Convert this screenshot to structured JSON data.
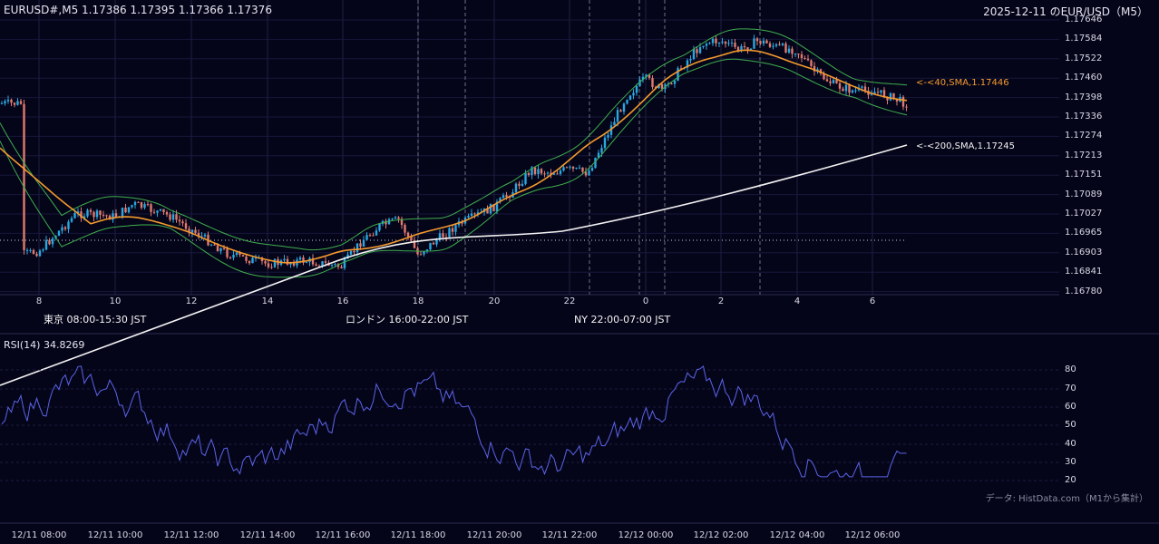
{
  "header": {
    "symbol_info": "EURUSD#,M5 1.17386 1.17395 1.17366 1.17376",
    "title": "2025-12-11 のEUR/USD（M5）"
  },
  "price_axis": {
    "ticks": [
      "1.17646",
      "1.17584",
      "1.17522",
      "1.17460",
      "1.17398",
      "1.17336",
      "1.17274",
      "1.17213",
      "1.17151",
      "1.17089",
      "1.17027",
      "1.16965",
      "1.16903",
      "1.16841",
      "1.16780"
    ]
  },
  "time_axis": {
    "hour_ticks": [
      "8",
      "10",
      "12",
      "14",
      "16",
      "18",
      "20",
      "22",
      "0",
      "2",
      "4",
      "6"
    ]
  },
  "sessions": [
    {
      "label": "東京 08:00-15:30 JST",
      "color": "#264a7a"
    },
    {
      "label": "ロンドン 16:00-22:00 JST",
      "color": "#7a5312"
    },
    {
      "label": "NY 22:00-07:00 JST",
      "color": "#24603c"
    }
  ],
  "indicators": {
    "sma40": {
      "label": "<-<40,SMA,1.17446",
      "color": "#f39a2c"
    },
    "sma200": {
      "label": "<-<200,SMA,1.17245",
      "color": "#f2f2f2"
    },
    "bollinger_color": "#3fae4d",
    "candle_up_color": "#29a8e0",
    "candle_down_color": "#e07a6e"
  },
  "rsi": {
    "label": "RSI(14) 34.8269",
    "ticks": [
      "80",
      "70",
      "60",
      "50",
      "40",
      "30",
      "20"
    ],
    "color": "#5b64e8"
  },
  "bottom_axis": {
    "ticks": [
      "12/11 08:00",
      "12/11 10:00",
      "12/11 12:00",
      "12/11 14:00",
      "12/11 16:00",
      "12/11 18:00",
      "12/11 20:00",
      "12/11 22:00",
      "12/12 00:00",
      "12/12 02:00",
      "12/12 04:00",
      "12/12 06:00"
    ]
  },
  "credit": "データ: HistData.com（M1から集計）",
  "chart_data": {
    "type": "line",
    "ohlc_last": {
      "open": 1.17386,
      "high": 1.17395,
      "low": 1.17366,
      "close": 1.17376
    },
    "x_hours": [
      7.6,
      8,
      9,
      10,
      10.5,
      11,
      11.5,
      12,
      13,
      14,
      15,
      16,
      16.5,
      17,
      17.5,
      18,
      19,
      20,
      20.5,
      21,
      21.5,
      22,
      22.5,
      23,
      23.5,
      0,
      0.5,
      1,
      1.5,
      2,
      2.5,
      3,
      3.5,
      4,
      4.5,
      5,
      5.5,
      6,
      6.5,
      6.9
    ],
    "close_series": {
      "name": "EURUSD close",
      "values": [
        1.169,
        1.1691,
        1.1703,
        1.1702,
        1.1706,
        1.1704,
        1.1702,
        1.1698,
        1.169,
        1.1687,
        1.1688,
        1.1686,
        1.1694,
        1.1699,
        1.1701,
        1.169,
        1.1699,
        1.1705,
        1.171,
        1.1717,
        1.1716,
        1.1717,
        1.1716,
        1.1728,
        1.174,
        1.1746,
        1.1742,
        1.175,
        1.1757,
        1.1758,
        1.1755,
        1.1758,
        1.1756,
        1.1755,
        1.1748,
        1.1744,
        1.1742,
        1.1742,
        1.174,
        1.1738
      ]
    },
    "sma40": {
      "name": "40,SMA",
      "last": 1.17446
    },
    "sma200": {
      "name": "200,SMA",
      "last": 1.17245
    },
    "rsi": {
      "name": "RSI(14)",
      "last": 34.8269,
      "ylim": [
        20,
        80
      ]
    },
    "ylim": [
      1.1678,
      1.17646
    ]
  }
}
